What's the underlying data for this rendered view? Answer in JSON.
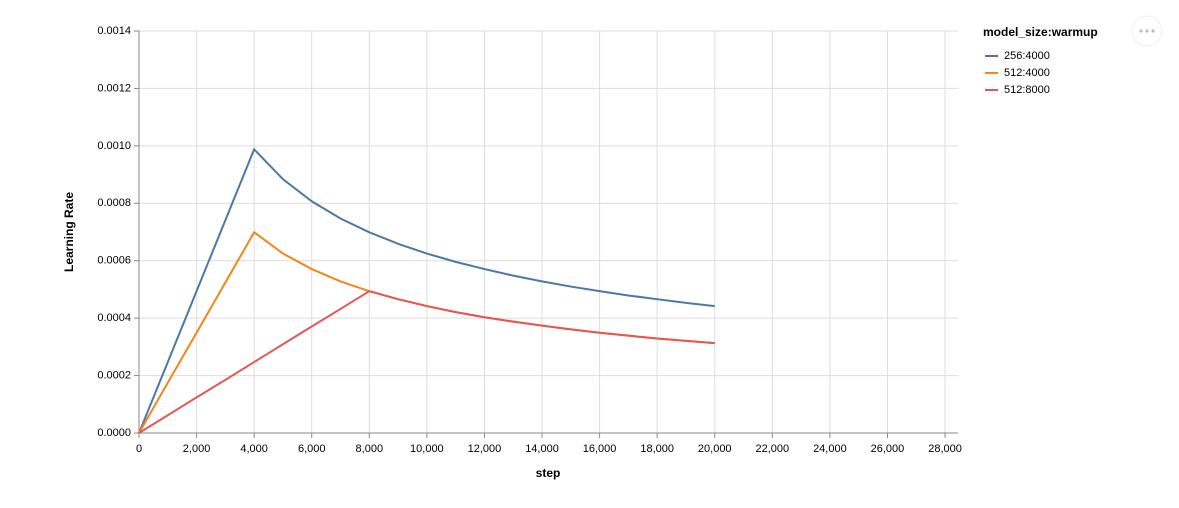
{
  "chart_data": {
    "type": "line",
    "x_label": "step",
    "y_label": "Learning Rate",
    "legend_title": "model_size:warmup",
    "x": [
      0,
      1000,
      2000,
      3000,
      4000,
      5000,
      6000,
      7000,
      8000,
      9000,
      10000,
      11000,
      12000,
      13000,
      14000,
      15000,
      16000,
      17000,
      18000,
      19000,
      20000
    ],
    "series": [
      {
        "name": "256:4000",
        "color": "#4c78a8",
        "values": [
          0,
          0.000247,
          0.000494,
          0.000741,
          0.000988,
          0.000884,
          0.000807,
          0.000747,
          0.000699,
          0.000659,
          0.000625,
          0.000596,
          0.000571,
          0.000548,
          0.000528,
          0.00051,
          0.000494,
          0.000479,
          0.000466,
          0.000453,
          0.000442
        ]
      },
      {
        "name": "512:4000",
        "color": "#f58518",
        "values": [
          0,
          0.000175,
          0.000349,
          0.000524,
          0.000699,
          0.000625,
          0.000571,
          0.000528,
          0.000494,
          0.000466,
          0.000442,
          0.000421,
          0.000403,
          0.000388,
          0.000374,
          0.000361,
          0.000349,
          0.000339,
          0.000329,
          0.000321,
          0.000313
        ]
      },
      {
        "name": "512:8000",
        "color": "#e45756",
        "values": [
          0,
          6.18e-05,
          0.000124,
          0.000185,
          0.000247,
          0.000309,
          0.000371,
          0.000432,
          0.000494,
          0.000466,
          0.000442,
          0.000421,
          0.000403,
          0.000388,
          0.000374,
          0.000361,
          0.000349,
          0.000339,
          0.000329,
          0.000321,
          0.000313
        ]
      }
    ],
    "xlim": [
      0,
      28450
    ],
    "ylim": [
      0,
      0.0014
    ],
    "xticks": [
      0,
      {
        "value": 2000,
        "label": "2,000"
      },
      {
        "value": 4000,
        "label": "4,000"
      },
      {
        "value": 6000,
        "label": "6,000"
      },
      {
        "value": 8000,
        "label": "8,000"
      },
      {
        "value": 10000,
        "label": "10,000"
      },
      {
        "value": 12000,
        "label": "12,000"
      },
      {
        "value": 14000,
        "label": "14,000"
      },
      {
        "value": 16000,
        "label": "16,000"
      },
      {
        "value": 18000,
        "label": "18,000"
      },
      {
        "value": 20000,
        "label": "20,000"
      },
      {
        "value": 22000,
        "label": "22,000"
      },
      {
        "value": 24000,
        "label": "24,000"
      },
      {
        "value": 26000,
        "label": "26,000"
      },
      {
        "value": 28000,
        "label": "28,000"
      }
    ],
    "yticks": [
      {
        "value": 0,
        "label": "0.0000"
      },
      {
        "value": 0.0002,
        "label": "0.0002"
      },
      {
        "value": 0.0004,
        "label": "0.0004"
      },
      {
        "value": 0.0006,
        "label": "0.0006"
      },
      {
        "value": 0.0008,
        "label": "0.0008"
      },
      {
        "value": 0.001,
        "label": "0.0010"
      },
      {
        "value": 0.0012,
        "label": "0.0012"
      },
      {
        "value": 0.0014,
        "label": "0.0014"
      }
    ],
    "grid": true
  }
}
